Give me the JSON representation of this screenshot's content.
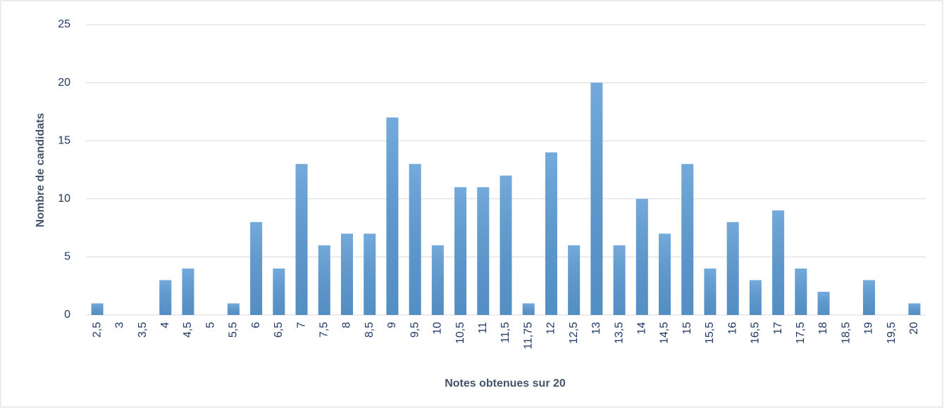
{
  "chart_data": {
    "type": "bar",
    "x_label": "Notes obtenues sur 20",
    "y_label": "Nombre de candidats",
    "categories": [
      "2,5",
      "3",
      "3,5",
      "4",
      "4,5",
      "5",
      "5,5",
      "6",
      "6,5",
      "7",
      "7,5",
      "8",
      "8,5",
      "9",
      "9,5",
      "10",
      "10,5",
      "11",
      "11,5",
      "11,75",
      "12",
      "12,5",
      "13",
      "13,5",
      "14",
      "14,5",
      "15",
      "15,5",
      "16",
      "16,5",
      "17",
      "17,5",
      "18",
      "18,5",
      "19",
      "19,5",
      "20"
    ],
    "values": [
      1,
      0,
      0,
      3,
      4,
      0,
      1,
      8,
      4,
      13,
      6,
      7,
      7,
      17,
      13,
      6,
      11,
      11,
      12,
      1,
      14,
      6,
      20,
      6,
      10,
      7,
      13,
      4,
      8,
      3,
      9,
      4,
      2,
      0,
      3,
      0,
      1
    ],
    "color": "#5b9bd5",
    "ylim": [
      0,
      25
    ],
    "yticks": [
      0,
      5,
      10,
      15,
      20,
      25
    ],
    "grid": true
  }
}
